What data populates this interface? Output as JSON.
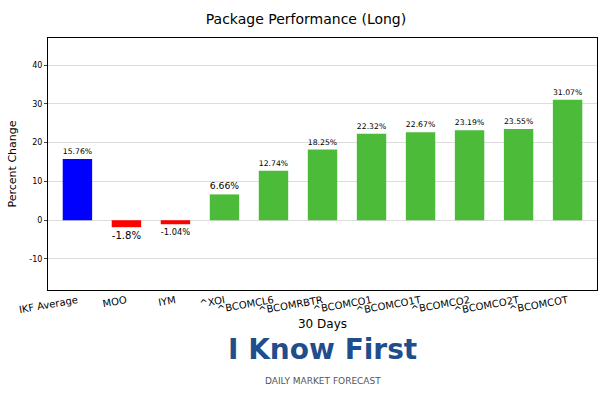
{
  "chart_data": {
    "type": "bar",
    "title": "Package Performance (Long)",
    "x_label": "30 Days",
    "y_label": "Percent Change",
    "categories": [
      "IKF Average",
      "MOO",
      "IYM",
      "^XOI",
      "^BCOMCL6",
      "^BCOMRBTR",
      "^BCOMCO1",
      "^BCOMCO1T",
      "^BCOMCO2",
      "^BCOMCO2T",
      "^BCOMCOT"
    ],
    "values": [
      15.76,
      -1.8,
      -1.04,
      6.66,
      12.74,
      18.25,
      22.32,
      22.67,
      23.19,
      23.55,
      31.07
    ],
    "value_labels": [
      "15.76%",
      "-1.8%",
      "-1.04%",
      "6.66%",
      "12.74%",
      "18.25%",
      "22.32%",
      "22.67%",
      "23.19%",
      "23.55%",
      "31.07%"
    ],
    "colors": [
      "#0000ff",
      "#ff0000",
      "#ff0000",
      "#4cbb3a",
      "#4cbb3a",
      "#4cbb3a",
      "#4cbb3a",
      "#4cbb3a",
      "#4cbb3a",
      "#4cbb3a",
      "#4cbb3a"
    ],
    "data_labels": true,
    "ylim": [
      -18,
      47
    ],
    "yticks": [
      -10,
      0,
      10,
      20,
      30,
      40
    ],
    "grid": true,
    "annotations": [
      {
        "text": "I Know First"
      },
      {
        "text": "DAILY MARKET FORECAST"
      }
    ]
  }
}
